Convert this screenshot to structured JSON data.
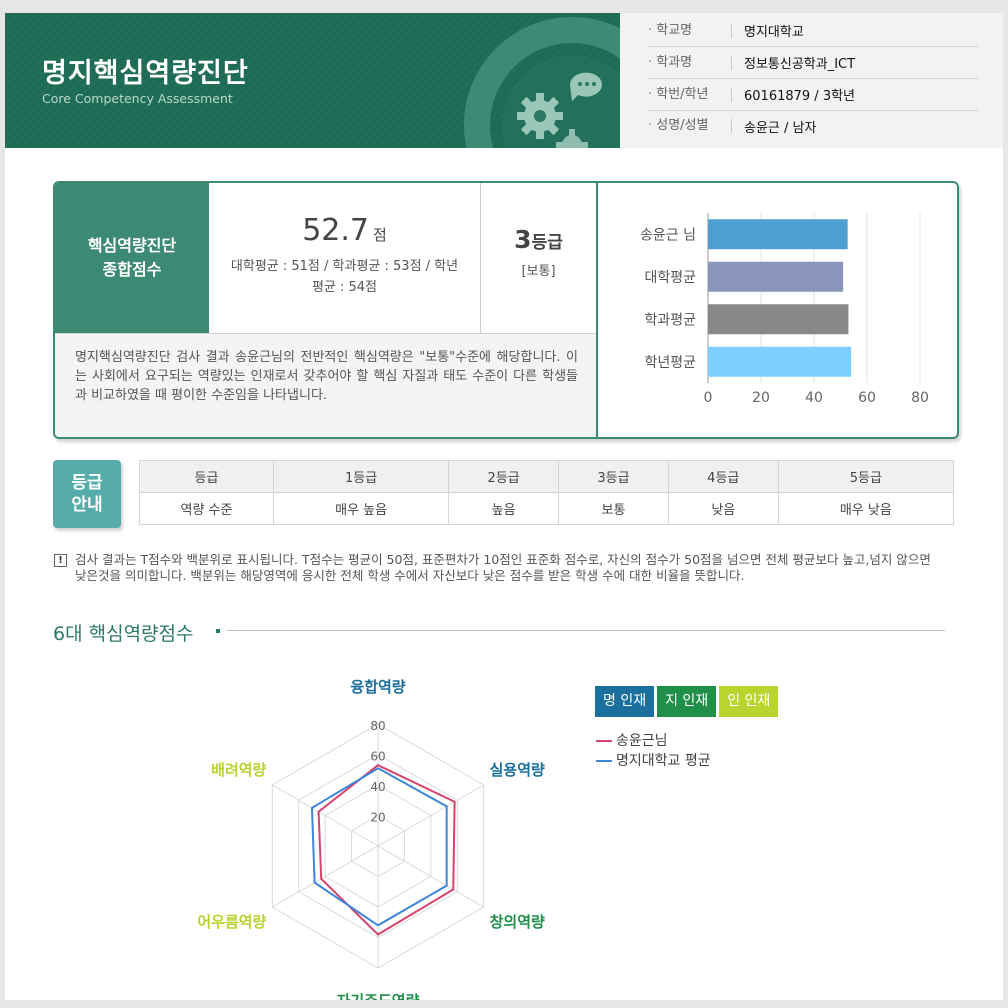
{
  "header": {
    "title": "명지핵심역량진단",
    "subtitle": "Core Competency Assessment",
    "info": [
      {
        "label": "학교명",
        "value": "명지대학교"
      },
      {
        "label": "학과명",
        "value": "정보통신공학과_ICT"
      },
      {
        "label": "학번/학년",
        "value": "60161879 / 3학년"
      },
      {
        "label": "성명/성별",
        "value": "송윤근 / 남자"
      }
    ]
  },
  "summary": {
    "label_line1": "핵심역량진단",
    "label_line2": "종합점수",
    "score": "52.7",
    "score_unit": "점",
    "averages": "대학평균 : 51점 / 학과평균 : 53점 / 학년평균 : 54점",
    "grade_number": "3",
    "grade_unit": "등급",
    "grade_word": "[보통]",
    "description": "명지핵심역량진단 검사 결과 송윤근님의 전반적인 핵심역량은 \"보통\"수준에 해당합니다. 이는 사회에서 요구되는 역량있는 인재로서 갖추어야 할 핵심 자질과 태도 수준이 다른 학생들과 비교하였을 때 평이한 수준임을 나타냅니다."
  },
  "guide": {
    "badge_line1": "등급",
    "badge_line2": "안내",
    "header": [
      "등급",
      "1등급",
      "2등급",
      "3등급",
      "4등급",
      "5등급"
    ],
    "row": [
      "역량 수준",
      "매우 높음",
      "높음",
      "보통",
      "낮음",
      "매우 낮음"
    ]
  },
  "note": {
    "icon": "!",
    "text": "검사 결과는 T점수와 백분위로 표시됩니다. T점수는 평균이 50점, 표준편차가 10점인 표준화 점수로, 자신의 점수가 50점을 넘으면 전체 평균보다 높고,넘지 않으면 낮은것을 의미합니다. 백분위는 해당영역에 응시한 전체 학생 수에서 자신보다 낮은 점수를 받은 학생 수에 대한 비율을 뜻합니다."
  },
  "section": {
    "title": "6대 핵심역량점수"
  },
  "legend": {
    "tags": [
      {
        "label": "명 인재",
        "color": "#1a6f9c"
      },
      {
        "label": "지 인재",
        "color": "#1f8f4a"
      },
      {
        "label": "인 인재",
        "color": "#b8d42e"
      }
    ],
    "series": [
      {
        "label": "송윤근님",
        "color": "#d7436a"
      },
      {
        "label": "명지대학교 평균",
        "color": "#3d86d8"
      }
    ]
  },
  "chart_data": [
    {
      "type": "bar",
      "orientation": "horizontal",
      "categories": [
        "송윤근 님",
        "대학평균",
        "학과평균",
        "학년평균"
      ],
      "values": [
        52.7,
        51,
        53,
        54
      ],
      "colors": [
        "#4f9fd3",
        "#8a95bc",
        "#888888",
        "#7ccfff"
      ],
      "xlim": [
        0,
        80
      ],
      "xticks": [
        0,
        20,
        40,
        60,
        80
      ],
      "grid": true
    },
    {
      "type": "radar",
      "axes": [
        "융합역량",
        "실용역량",
        "창의역량",
        "자기주도역량",
        "어우름역량",
        "배려역량"
      ],
      "axis_colors": [
        "#1a6f9c",
        "#1a6f9c",
        "#1f8f4a",
        "#1f8f4a",
        "#b8d42e",
        "#b8d42e"
      ],
      "rlim": [
        0,
        80
      ],
      "rticks": [
        20,
        40,
        60,
        80
      ],
      "series": [
        {
          "name": "송윤근님",
          "color": "#d7436a",
          "values": [
            53,
            58,
            57,
            58,
            43,
            45
          ]
        },
        {
          "name": "명지대학교 평균",
          "color": "#3d86d8",
          "values": [
            51,
            52,
            52,
            52,
            48,
            50
          ]
        }
      ]
    }
  ]
}
